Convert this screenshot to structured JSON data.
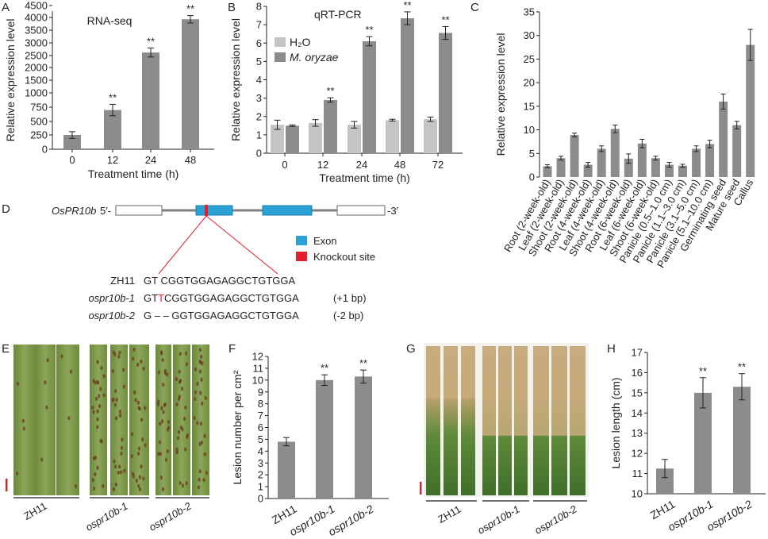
{
  "panel_letters": [
    "A",
    "B",
    "C",
    "D",
    "E",
    "F",
    "G",
    "H"
  ],
  "colors": {
    "bar_dark": "#8c8c8c",
    "bar_light": "#c4c4c4",
    "exon": "#2aa3d4",
    "knockout": "#e41e2e",
    "intron": "#7f7f7f"
  },
  "chart_data": [
    {
      "panel": "A",
      "type": "bar",
      "title": "RNA-seq",
      "xlabel": "Treatment time (h)",
      "ylabel": "Relative expression level",
      "categories": [
        "0",
        "12",
        "24",
        "48"
      ],
      "values": [
        250,
        700,
        2620,
        3930
      ],
      "errors": [
        60,
        100,
        180,
        150
      ],
      "annotations": [
        "",
        "**",
        "**",
        "**"
      ],
      "ylim": [
        0,
        4500
      ],
      "yticks": [
        "0",
        "250",
        "500",
        "750",
        "1000",
        "1500",
        "2000",
        "2500",
        "3000",
        "3500",
        "4000",
        "4500"
      ]
    },
    {
      "panel": "B",
      "type": "bar",
      "title": "qRT-PCR",
      "xlabel": "Treatment time (h)",
      "ylabel": "Relative expression level",
      "categories": [
        "0",
        "12",
        "24",
        "48",
        "72"
      ],
      "legend": [
        "H₂O",
        "M. oryzae"
      ],
      "series": [
        {
          "name": "H₂O",
          "values": [
            1.55,
            1.65,
            1.55,
            1.8,
            1.85
          ],
          "errors": [
            0.25,
            0.18,
            0.18,
            0.05,
            0.12
          ]
        },
        {
          "name": "M. oryzae",
          "values": [
            1.5,
            2.9,
            6.1,
            7.35,
            6.55
          ],
          "errors": [
            0.04,
            0.12,
            0.25,
            0.35,
            0.35
          ]
        }
      ],
      "annotations": [
        "",
        "**",
        "**",
        "**",
        "**"
      ],
      "ylim": [
        0,
        8
      ],
      "yticks": [
        "0",
        "1",
        "2",
        "3",
        "4",
        "5",
        "6",
        "7",
        "8"
      ]
    },
    {
      "panel": "C",
      "type": "bar",
      "ylabel": "Relative expression level",
      "categories": [
        "Root (2-week-old)",
        "Leaf (2-week-old)",
        "Shoot (2-week-old)",
        "Root (4-week-old)",
        "Leaf (4-week-old)",
        "Shoot (4-week-old)",
        "Root (6-week-old)",
        "Leaf (6-week-old)",
        "Shoot (6-week-old)",
        "Panicle (0.5–1.0 cm)",
        "Panicle (1.1–3.0 cm)",
        "Panicle (3.1–5.0 cm)",
        "Panicle (5.1–10.0 cm)",
        "Germinating seed",
        "Mature seed",
        "Callus"
      ],
      "values": [
        2.3,
        4.0,
        8.9,
        2.6,
        6.0,
        10.2,
        3.9,
        7.1,
        4.0,
        2.6,
        2.4,
        6.0,
        7.0,
        16.0,
        11.0,
        28.0
      ],
      "errors": [
        0.3,
        0.4,
        0.4,
        0.5,
        0.6,
        0.8,
        1.0,
        0.9,
        0.4,
        0.5,
        0.3,
        0.6,
        0.8,
        1.6,
        0.8,
        3.3
      ],
      "ylim": [
        0,
        35
      ],
      "yticks": [
        "0",
        "5",
        "10",
        "15",
        "20",
        "25",
        "30",
        "35"
      ]
    },
    {
      "panel": "F",
      "type": "bar",
      "ylabel": "Lesion number per cm²",
      "categories": [
        "ZH11",
        "ospr10b-1",
        "ospr10b-2"
      ],
      "values": [
        4.8,
        10.0,
        10.3
      ],
      "errors": [
        0.35,
        0.45,
        0.55
      ],
      "annotations": [
        "",
        "**",
        "**"
      ],
      "ylim": [
        0,
        12
      ],
      "yticks": [
        "0",
        "1",
        "2",
        "3",
        "4",
        "5",
        "6",
        "7",
        "8",
        "9",
        "10",
        "11",
        "12"
      ]
    },
    {
      "panel": "H",
      "type": "bar",
      "ylabel": "Lesion length (cm)",
      "categories": [
        "ZH11",
        "ospr10b-1",
        "ospr10b-2"
      ],
      "values": [
        11.25,
        15.0,
        15.3
      ],
      "errors": [
        0.45,
        0.75,
        0.65
      ],
      "annotations": [
        "",
        "**",
        "**"
      ],
      "ylim": [
        10,
        17
      ],
      "yticks": [
        "10",
        "11",
        "12",
        "13",
        "14",
        "15",
        "16",
        "17"
      ]
    }
  ],
  "gene": {
    "name": "OsPR10b",
    "five_prime": "5′-",
    "three_prime": "-3′",
    "legend_exon": "Exon",
    "legend_knockout": "Knockout site",
    "sequences": [
      {
        "line": "ZH11",
        "prefix": "GT",
        "insert": "",
        "rest": " CGGTGGAGAGGCTGTGGA",
        "note": ""
      },
      {
        "line": "ospr10b-1",
        "prefix": "GT",
        "insert": "T",
        "rest": "CGGTGGAGAGGCTGTGGA",
        "note": "(+1 bp)"
      },
      {
        "line": "ospr10b-2",
        "prefix": "G – – ",
        "insert": "",
        "rest": "GGTGGAGAGGCTGTGGA",
        "note": "(-2 bp)"
      }
    ]
  },
  "photo_labels": {
    "E": [
      "ZH11",
      "ospr10b-1",
      "ospr10b-2"
    ],
    "G": [
      "ZH11",
      "ospr10b-1",
      "ospr10b-2"
    ]
  }
}
